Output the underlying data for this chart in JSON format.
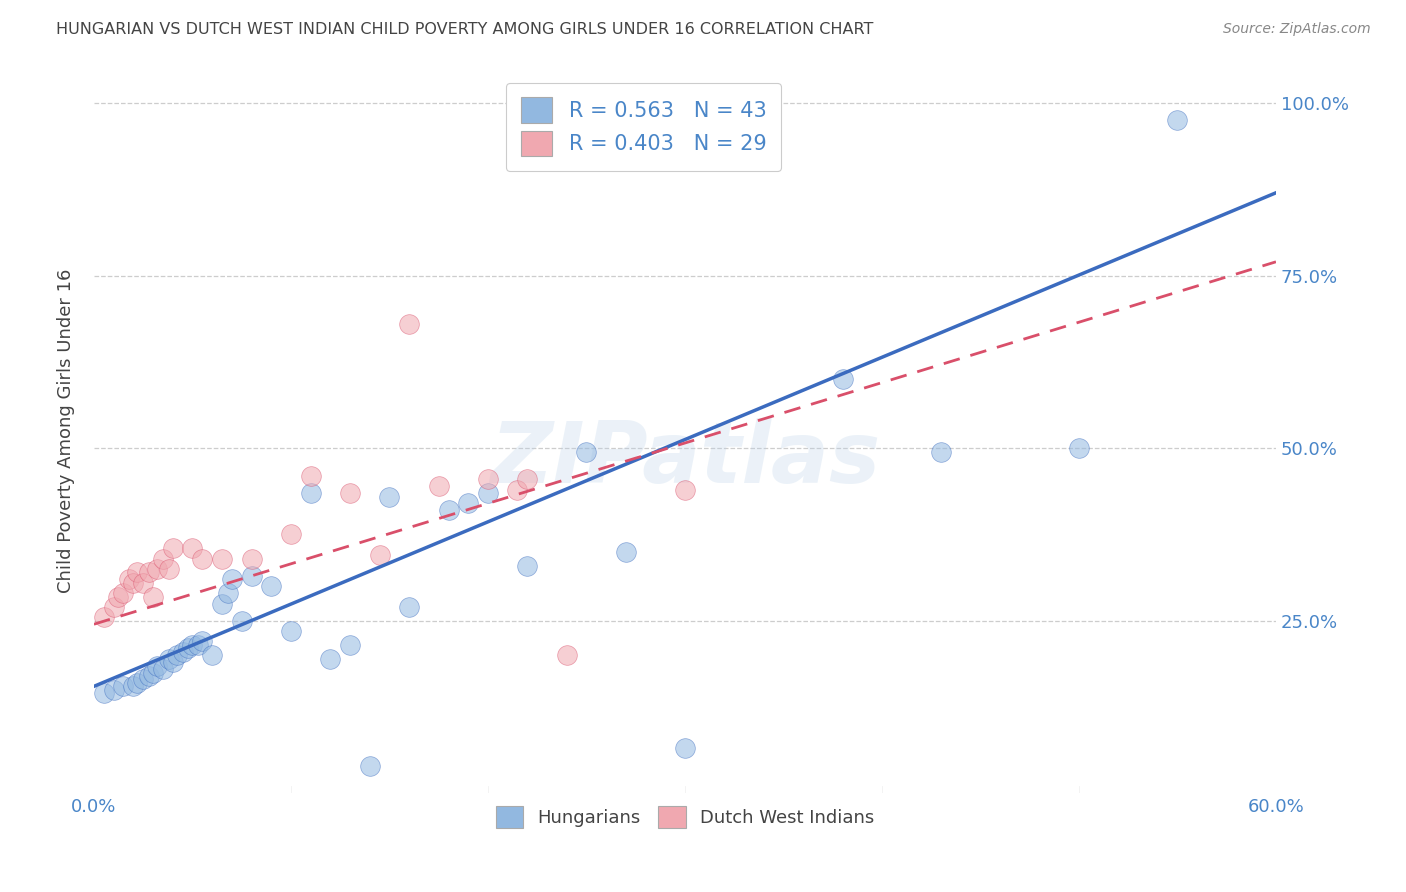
{
  "title": "HUNGARIAN VS DUTCH WEST INDIAN CHILD POVERTY AMONG GIRLS UNDER 16 CORRELATION CHART",
  "source": "Source: ZipAtlas.com",
  "ylabel": "Child Poverty Among Girls Under 16",
  "xlim": [
    0.0,
    0.6
  ],
  "ylim": [
    0.0,
    1.05
  ],
  "ytick_pos": [
    0.0,
    0.25,
    0.5,
    0.75,
    1.0
  ],
  "ytick_labels": [
    "",
    "25.0%",
    "50.0%",
    "75.0%",
    "100.0%"
  ],
  "xtick_pos": [
    0.0,
    0.1,
    0.2,
    0.3,
    0.4,
    0.5,
    0.6
  ],
  "xtick_labels": [
    "0.0%",
    "",
    "",
    "",
    "",
    "",
    "60.0%"
  ],
  "watermark": "ZIPatlas",
  "legend_line1": "R = 0.563   N = 43",
  "legend_line2": "R = 0.403   N = 29",
  "blue_color": "#92b8e0",
  "pink_color": "#f0a8b0",
  "blue_line_color": "#3b6bbf",
  "pink_line_color": "#d94f6a",
  "background_color": "#ffffff",
  "grid_color": "#c8c8c8",
  "title_color": "#444444",
  "axis_label_color": "#4a86c8",
  "hun_x": [
    0.005,
    0.01,
    0.015,
    0.02,
    0.022,
    0.025,
    0.028,
    0.03,
    0.032,
    0.035,
    0.038,
    0.04,
    0.042,
    0.045,
    0.048,
    0.05,
    0.053,
    0.055,
    0.06,
    0.065,
    0.068,
    0.07,
    0.075,
    0.08,
    0.09,
    0.1,
    0.11,
    0.12,
    0.13,
    0.14,
    0.15,
    0.16,
    0.18,
    0.19,
    0.2,
    0.22,
    0.25,
    0.27,
    0.3,
    0.38,
    0.43,
    0.5,
    0.55
  ],
  "hun_y": [
    0.145,
    0.15,
    0.155,
    0.155,
    0.16,
    0.165,
    0.17,
    0.175,
    0.185,
    0.18,
    0.195,
    0.19,
    0.2,
    0.205,
    0.21,
    0.215,
    0.215,
    0.22,
    0.2,
    0.275,
    0.29,
    0.31,
    0.25,
    0.315,
    0.3,
    0.235,
    0.435,
    0.195,
    0.215,
    0.04,
    0.43,
    0.27,
    0.41,
    0.42,
    0.435,
    0.33,
    0.495,
    0.35,
    0.065,
    0.6,
    0.495,
    0.5,
    0.975
  ],
  "dwi_x": [
    0.005,
    0.01,
    0.012,
    0.015,
    0.018,
    0.02,
    0.022,
    0.025,
    0.028,
    0.03,
    0.032,
    0.035,
    0.038,
    0.04,
    0.05,
    0.055,
    0.065,
    0.08,
    0.1,
    0.11,
    0.13,
    0.145,
    0.16,
    0.175,
    0.2,
    0.215,
    0.22,
    0.24,
    0.3
  ],
  "dwi_y": [
    0.255,
    0.27,
    0.285,
    0.29,
    0.31,
    0.305,
    0.32,
    0.305,
    0.32,
    0.285,
    0.325,
    0.34,
    0.325,
    0.355,
    0.355,
    0.34,
    0.34,
    0.34,
    0.375,
    0.46,
    0.435,
    0.345,
    0.68,
    0.445,
    0.455,
    0.44,
    0.455,
    0.2,
    0.44
  ]
}
